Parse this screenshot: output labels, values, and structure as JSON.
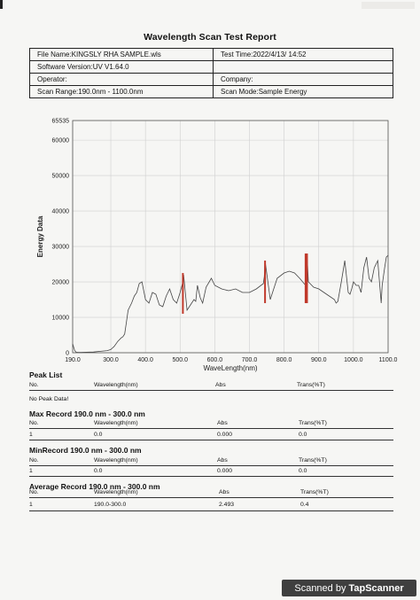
{
  "report": {
    "title": "Wavelength Scan Test Report",
    "file_name": "File Name:KINGSLY RHA SAMPLE.wls",
    "test_time": "Test Time:2022/4/13/ 14:52",
    "software_version": "Software Version:UV V1.64.0",
    "operator": "Operator:",
    "company": "Company:",
    "scan_range": "Scan Range:190.0nm - 1100.0nm",
    "scan_mode": "Scan Mode:Sample Energy"
  },
  "chart_data": {
    "type": "line",
    "ylabel": "Energy Data",
    "xlabel": "WaveLength(nm)",
    "xlim": [
      190,
      1100
    ],
    "ylim": [
      0,
      65535
    ],
    "x_ticks": [
      "190.0",
      "300.0",
      "400.0",
      "500.0",
      "600.0",
      "700.0",
      "800.0",
      "900.0",
      "1000.0",
      "1100.0"
    ],
    "x_tick_values": [
      190,
      300,
      400,
      500,
      600,
      700,
      800,
      900,
      1000,
      1100
    ],
    "y_ticks": [
      "0",
      "10000",
      "20000",
      "30000",
      "40000",
      "50000",
      "60000",
      "65535"
    ],
    "y_tick_values": [
      0,
      10000,
      20000,
      30000,
      40000,
      50000,
      60000,
      65535
    ],
    "grid": true,
    "line_color": "#444444",
    "highlight_color": "#c0392b",
    "series": [
      {
        "x": [
          190,
          193,
          196,
          200,
          205,
          215,
          230,
          250,
          270,
          290,
          300,
          310,
          320,
          330,
          335,
          340,
          345,
          350,
          360,
          368,
          375,
          382,
          390,
          400,
          410,
          420,
          430,
          440,
          450,
          460,
          470,
          480,
          490,
          500,
          508,
          510,
          520,
          530,
          540,
          545,
          550,
          558,
          565,
          575,
          590,
          600,
          620,
          640,
          660,
          680,
          700,
          720,
          740,
          743,
          745,
          760,
          780,
          800,
          815,
          830,
          845,
          862,
          866,
          870,
          885,
          900,
          915,
          930,
          945,
          950,
          955,
          965,
          975,
          985,
          990,
          995,
          1000,
          1008,
          1015,
          1022,
          1030,
          1038,
          1045,
          1052,
          1060,
          1070,
          1080,
          1083,
          1090,
          1095,
          1100
        ],
        "y": [
          2500,
          1500,
          600,
          150,
          100,
          80,
          150,
          200,
          400,
          600,
          900,
          1800,
          3200,
          4200,
          4500,
          5300,
          8500,
          12000,
          14000,
          16000,
          17000,
          19500,
          20000,
          15000,
          14000,
          17000,
          16500,
          13500,
          13000,
          16000,
          18000,
          15000,
          14000,
          17000,
          20000,
          22000,
          12000,
          13500,
          15000,
          14500,
          19000,
          15500,
          14000,
          18500,
          21000,
          19000,
          18000,
          17500,
          18000,
          17000,
          17000,
          18000,
          19500,
          21500,
          26000,
          15000,
          21000,
          22500,
          23000,
          22500,
          21000,
          19000,
          28000,
          20000,
          18500,
          18000,
          17000,
          16000,
          15000,
          14000,
          14500,
          20000,
          26000,
          17000,
          16500,
          18000,
          20000,
          19000,
          19000,
          17000,
          24000,
          27000,
          21000,
          20000,
          24000,
          26000,
          14000,
          19000,
          24000,
          27000,
          27500
        ]
      }
    ],
    "highlight_bars": [
      {
        "x": 508,
        "y_from": 11000,
        "y_to": 22500
      },
      {
        "x": 745,
        "y_from": 14000,
        "y_to": 26000
      },
      {
        "x": 862,
        "y_from": 14000,
        "y_to": 28000
      },
      {
        "x": 866,
        "y_from": 14000,
        "y_to": 28000
      }
    ]
  },
  "peak_list": {
    "title": "Peak List",
    "col_no": "No.",
    "col_wavelength": "Wavelength(nm)",
    "col_abs": "Abs",
    "col_trans": "Trans(%T)",
    "no_peak": "No Peak Data!"
  },
  "max_record": {
    "title": "Max Record  190.0 nm - 300.0 nm",
    "col_no": "No.",
    "col_wavelength": "Wavelength(nm)",
    "col_abs": "Abs",
    "col_trans": "Trans(%T)",
    "no": "1",
    "wavelength": "0.0",
    "abs": "0.000",
    "trans": "0.0"
  },
  "min_record": {
    "title": "MinRecord  190.0 nm - 300.0 nm",
    "col_no": "No.",
    "col_wavelength": "Wavelength(nm)",
    "col_abs": "Abs",
    "col_trans": "Trans(%T)",
    "no": "1",
    "wavelength": "0.0",
    "abs": "0.000",
    "trans": "0.0"
  },
  "average_record": {
    "title": "Average Record  190.0 nm - 300.0 nm",
    "col_no": "No.",
    "col_wavelength": "Wavelength(nm)",
    "col_abs": "Abs",
    "col_trans": "Trans(%T)",
    "no": "1",
    "wavelength": "190.0-300.0",
    "abs": "2.493",
    "trans": "0.4"
  },
  "watermark": {
    "scanned_by": "Scanned by",
    "brand": "TapScanner"
  }
}
